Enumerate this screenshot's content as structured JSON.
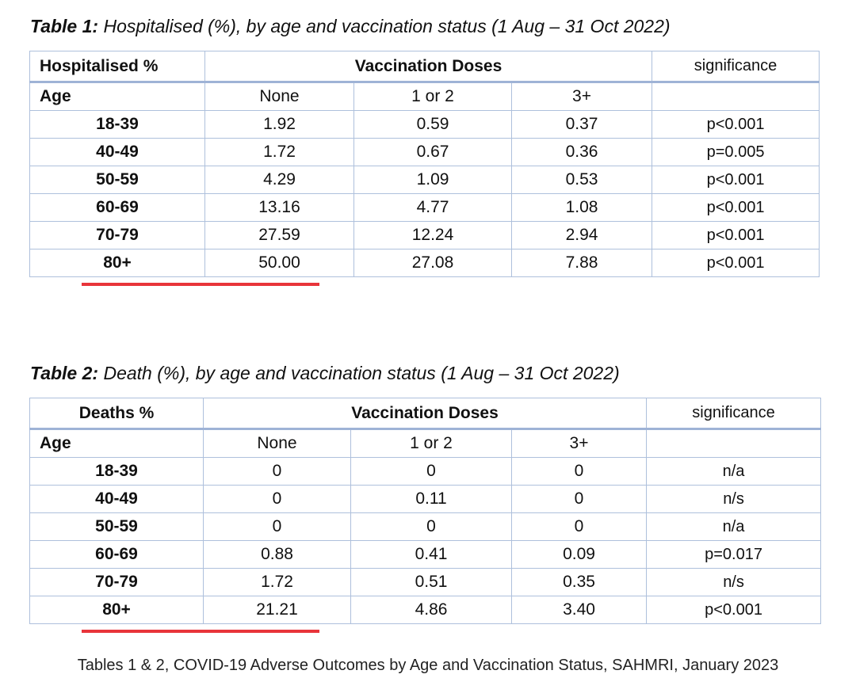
{
  "table1": {
    "caption_label": "Table 1:",
    "caption_text": " Hospitalised (%), by age and vaccination status (1 Aug –  31 Oct 2022)",
    "corner_header": "Hospitalised %",
    "group_header": "Vaccination Doses",
    "significance_header": "significance",
    "age_label": "Age",
    "columns": [
      "None",
      "1 or 2",
      "3+"
    ],
    "rows": [
      {
        "age": "18-39",
        "none": "1.92",
        "one_two": "0.59",
        "three_plus": "0.37",
        "sig": "p<0.001"
      },
      {
        "age": "40-49",
        "none": "1.72",
        "one_two": "0.67",
        "three_plus": "0.36",
        "sig": "p=0.005"
      },
      {
        "age": "50-59",
        "none": "4.29",
        "one_two": "1.09",
        "three_plus": "0.53",
        "sig": "p<0.001"
      },
      {
        "age": "60-69",
        "none": "13.16",
        "one_two": "4.77",
        "three_plus": "1.08",
        "sig": "p<0.001"
      },
      {
        "age": "70-79",
        "none": "27.59",
        "one_two": "12.24",
        "three_plus": "2.94",
        "sig": "p<0.001"
      },
      {
        "age": "80+",
        "none": "50.00",
        "one_two": "27.08",
        "three_plus": "7.88",
        "sig": "p<0.001"
      }
    ]
  },
  "table2": {
    "caption_label": "Table 2:",
    "caption_text": " Death (%), by age and vaccination status (1 Aug – 31 Oct 2022)",
    "corner_header": "Deaths %",
    "group_header": "Vaccination Doses",
    "significance_header": "significance",
    "age_label": "Age",
    "columns": [
      "None",
      "1 or 2",
      "3+"
    ],
    "rows": [
      {
        "age": "18-39",
        "none": "0",
        "one_two": "0",
        "three_plus": "0",
        "sig": "n/a"
      },
      {
        "age": "40-49",
        "none": "0",
        "one_two": "0.11",
        "three_plus": "0",
        "sig": "n/s"
      },
      {
        "age": "50-59",
        "none": "0",
        "one_two": "0",
        "three_plus": "0",
        "sig": "n/a"
      },
      {
        "age": "60-69",
        "none": "0.88",
        "one_two": "0.41",
        "three_plus": "0.09",
        "sig": "p=0.017"
      },
      {
        "age": "70-79",
        "none": "1.72",
        "one_two": "0.51",
        "three_plus": "0.35",
        "sig": "n/s"
      },
      {
        "age": "80+",
        "none": "21.21",
        "one_two": "4.86",
        "three_plus": "3.40",
        "sig": "p<0.001"
      }
    ]
  },
  "highlight_color": "#e8343a",
  "footer": "Tables 1 & 2, COVID-19 Adverse Outcomes by Age and Vaccination Status, SAHMRI, January 2023"
}
